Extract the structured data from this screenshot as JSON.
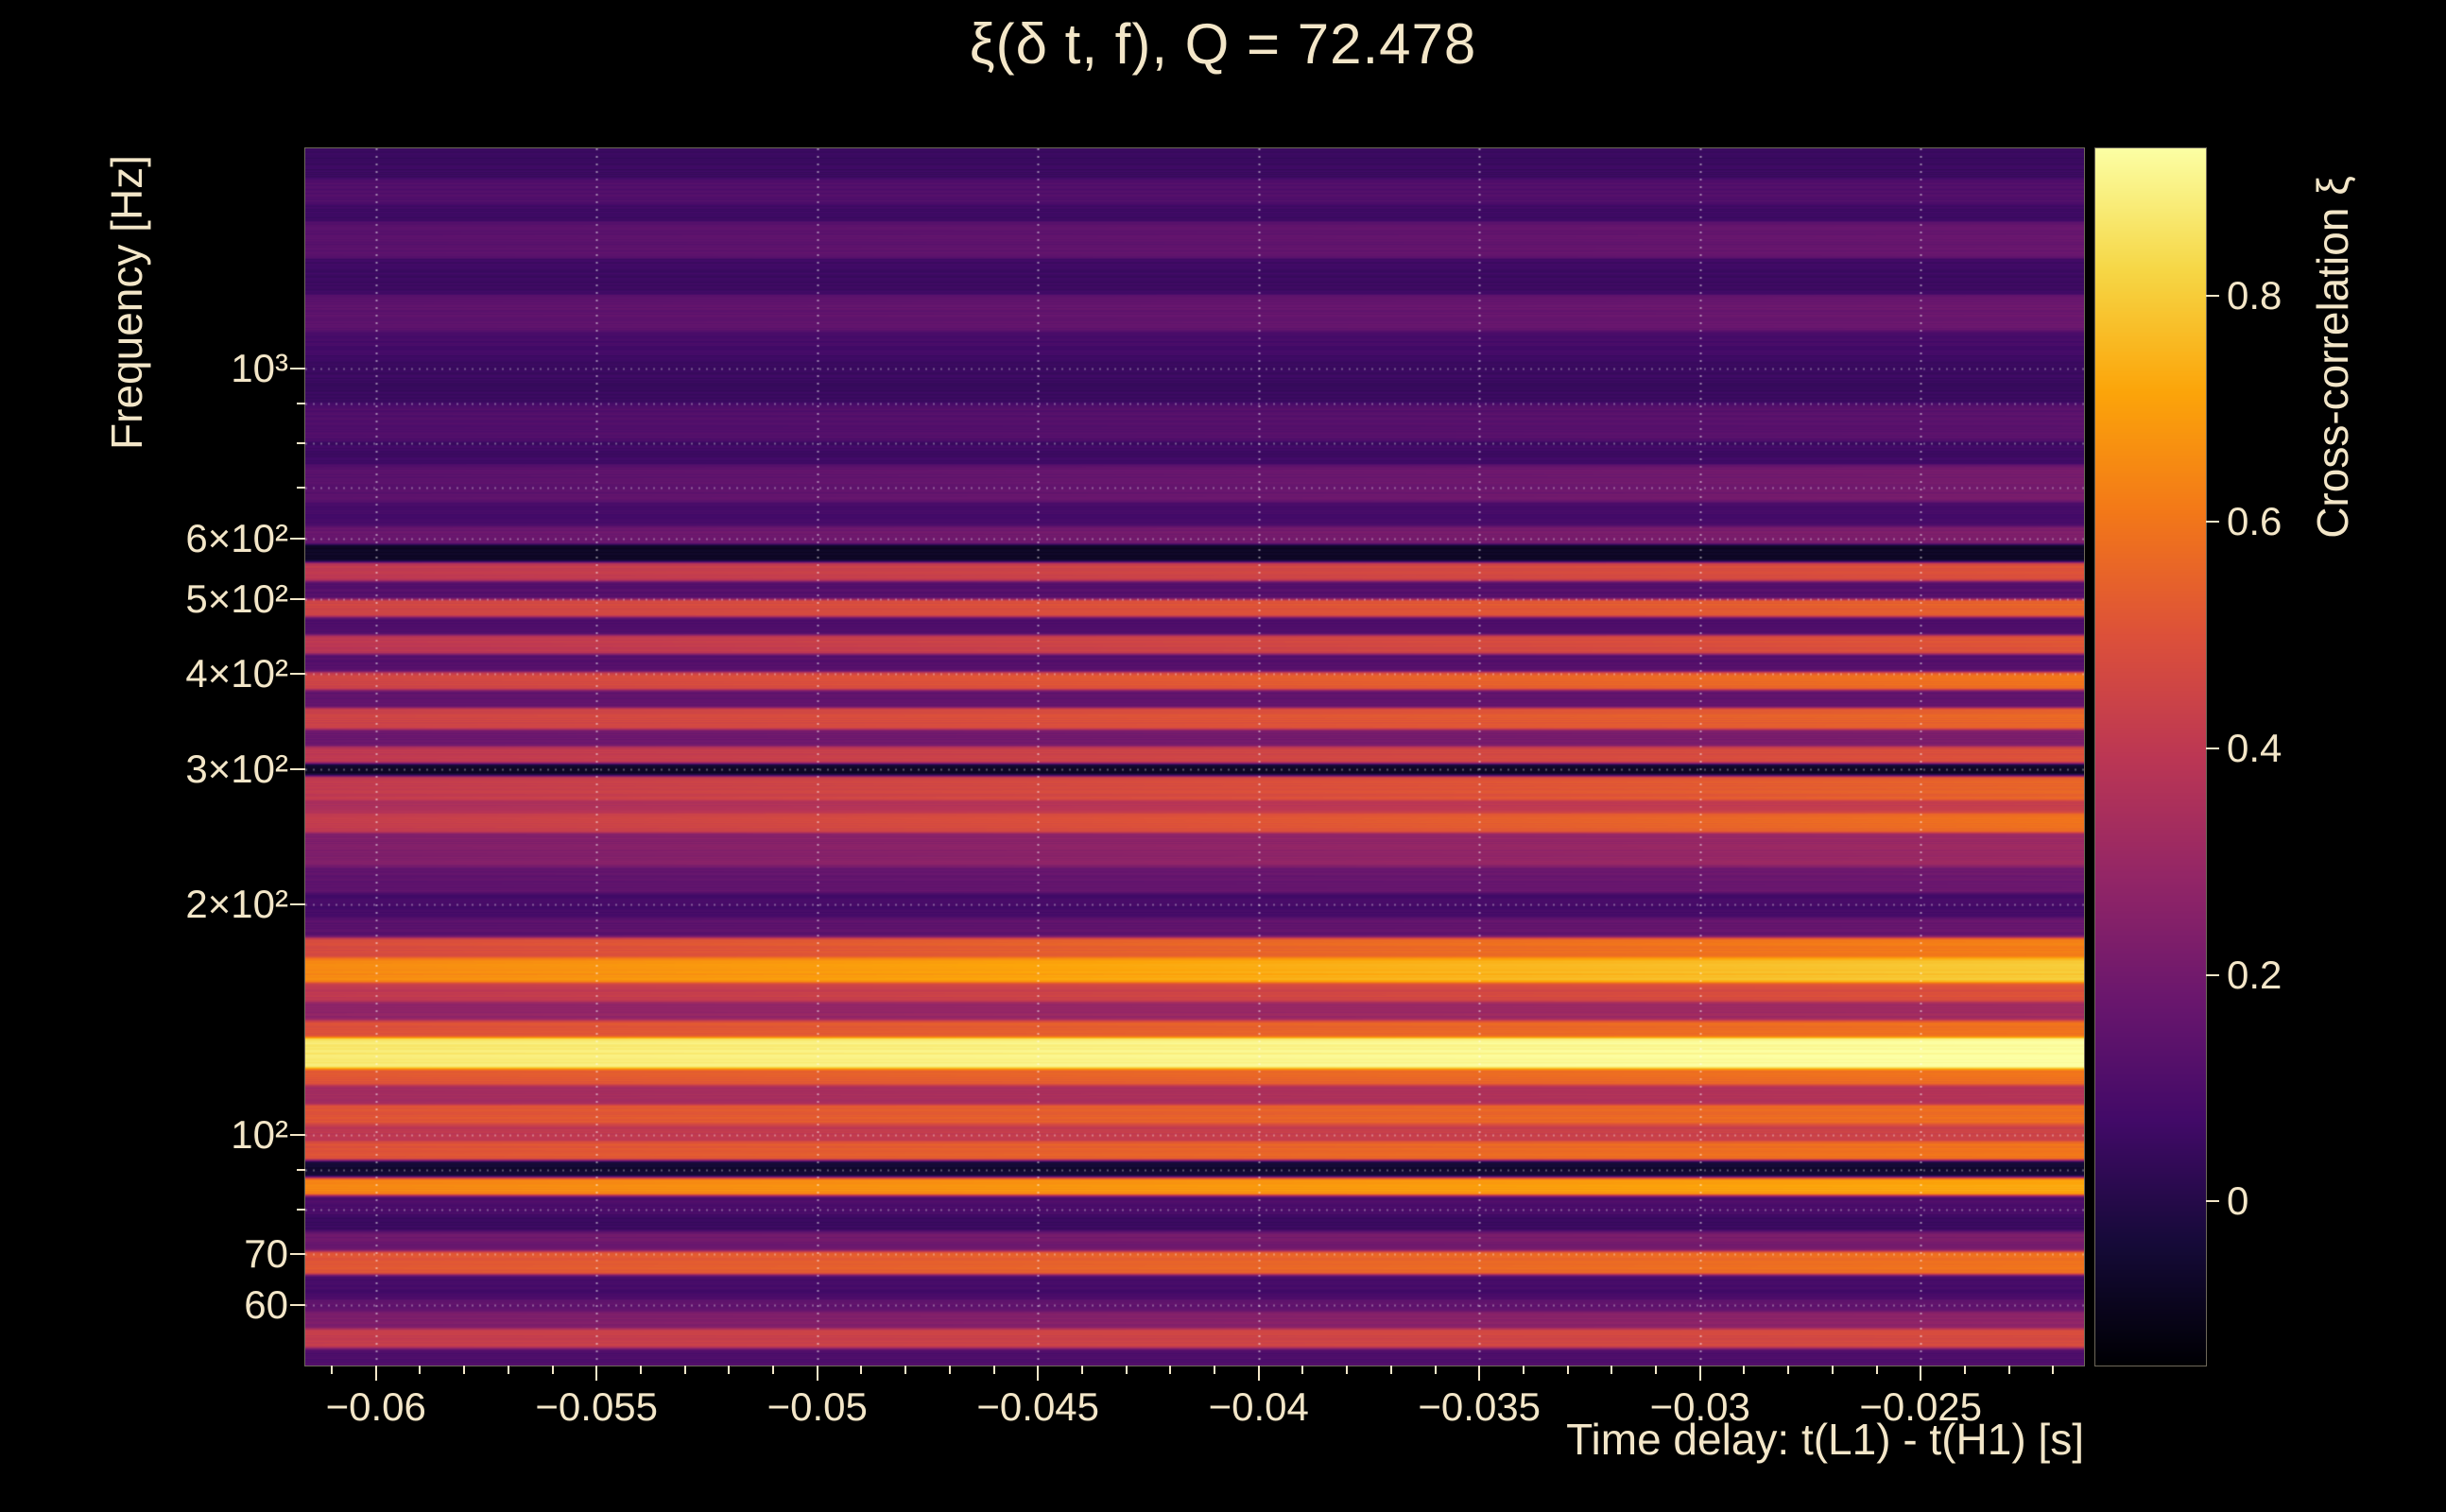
{
  "chart_data": {
    "type": "heatmap",
    "title": "ξ(δ t, f), Q = 72.478",
    "q": 72.478,
    "xlabel": "Time delay: t(L1) - t(H1) [s]",
    "ylabel": "Frequency [Hz]",
    "colorbar_label": "Cross-correlation ξ",
    "x_range": [
      -0.0616,
      -0.0213
    ],
    "y_range_hz": [
      50,
      1940
    ],
    "y_scale": "log",
    "grid": "dotted-white",
    "colormap": "inferno",
    "color_range": [
      -0.145,
      0.93
    ],
    "colormap_stops": [
      [
        0,
        "#000004"
      ],
      [
        0.1,
        "#160b39"
      ],
      [
        0.2,
        "#420a68"
      ],
      [
        0.3,
        "#6a176e"
      ],
      [
        0.4,
        "#932667"
      ],
      [
        0.5,
        "#bc3754"
      ],
      [
        0.6,
        "#dd513a"
      ],
      [
        0.7,
        "#f37819"
      ],
      [
        0.8,
        "#fca50a"
      ],
      [
        0.9,
        "#f6d746"
      ],
      [
        1,
        "#fcffa4"
      ]
    ],
    "x_ticks": [
      {
        "v": -0.06,
        "label": "−0.06"
      },
      {
        "v": -0.055,
        "label": "−0.055"
      },
      {
        "v": -0.05,
        "label": "−0.05"
      },
      {
        "v": -0.045,
        "label": "−0.045"
      },
      {
        "v": -0.04,
        "label": "−0.04"
      },
      {
        "v": -0.035,
        "label": "−0.035"
      },
      {
        "v": -0.03,
        "label": "−0.03"
      },
      {
        "v": -0.025,
        "label": "−0.025"
      }
    ],
    "x_minor_step": 0.001,
    "y_ticks": [
      {
        "hz": 1000,
        "label": "10³"
      },
      {
        "hz": 900,
        "label": ""
      },
      {
        "hz": 800,
        "label": ""
      },
      {
        "hz": 700,
        "label": ""
      },
      {
        "hz": 600,
        "label": "6×10²"
      },
      {
        "hz": 500,
        "label": "5×10²"
      },
      {
        "hz": 400,
        "label": "4×10²"
      },
      {
        "hz": 300,
        "label": "3×10²"
      },
      {
        "hz": 200,
        "label": "2×10²"
      },
      {
        "hz": 100,
        "label": "10²"
      },
      {
        "hz": 90,
        "label": ""
      },
      {
        "hz": 80,
        "label": ""
      },
      {
        "hz": 70,
        "label": "70"
      },
      {
        "hz": 60,
        "label": "60"
      }
    ],
    "colorbar_ticks": [
      {
        "v": 0.8,
        "label": "0.8"
      },
      {
        "v": 0.6,
        "label": "0.6"
      },
      {
        "v": 0.4,
        "label": "0.4"
      },
      {
        "v": 0.2,
        "label": "0.2"
      },
      {
        "v": 0,
        "label": "0"
      }
    ],
    "bands_format": [
      "f_hi_hz",
      "f_lo_hz",
      "xi",
      "xi_slope_left_to_right"
    ],
    "bands": [
      [
        1940,
        1772,
        0.05,
        0
      ],
      [
        1772,
        1645,
        0.11,
        0
      ],
      [
        1645,
        1558,
        0.06,
        0
      ],
      [
        1558,
        1396,
        0.15,
        0.04
      ],
      [
        1396,
        1252,
        0.06,
        0
      ],
      [
        1252,
        1122,
        0.16,
        0.04
      ],
      [
        1122,
        1043,
        0.08,
        0
      ],
      [
        1043,
        901,
        0.05,
        0
      ],
      [
        901,
        806,
        0.12,
        0.03
      ],
      [
        806,
        750,
        0.06,
        0
      ],
      [
        750,
        671,
        0.17,
        0.08
      ],
      [
        671,
        624,
        0.08,
        0
      ],
      [
        624,
        591,
        0.2,
        0.06
      ],
      [
        591,
        559,
        -0.08,
        0
      ],
      [
        559,
        529,
        0.45,
        0.1
      ],
      [
        529,
        501,
        0.12,
        0
      ],
      [
        501,
        474,
        0.5,
        0.1
      ],
      [
        474,
        449,
        0.1,
        0
      ],
      [
        449,
        425,
        0.45,
        0.12
      ],
      [
        425,
        402,
        0.12,
        0
      ],
      [
        402,
        381,
        0.52,
        0.15
      ],
      [
        381,
        361,
        0.15,
        0
      ],
      [
        361,
        338,
        0.5,
        0.12
      ],
      [
        338,
        321,
        0.2,
        0.05
      ],
      [
        321,
        305,
        0.45,
        0.1
      ],
      [
        305,
        294,
        -0.08,
        0
      ],
      [
        294,
        273,
        0.48,
        0.15
      ],
      [
        273,
        263,
        0.38,
        0.08
      ],
      [
        263,
        248,
        0.5,
        0.18
      ],
      [
        248,
        224,
        0.27,
        0.08
      ],
      [
        224,
        207,
        0.17,
        0.04
      ],
      [
        207,
        192,
        0.08,
        0
      ],
      [
        192,
        181,
        0.15,
        0.04
      ],
      [
        181,
        170,
        0.55,
        0.15
      ],
      [
        170,
        158,
        0.72,
        0.15
      ],
      [
        158,
        149,
        0.45,
        0.1
      ],
      [
        149,
        141,
        0.3,
        0.05
      ],
      [
        141,
        134,
        0.55,
        0.1
      ],
      [
        134,
        122,
        0.9,
        0.06
      ],
      [
        122,
        116,
        0.55,
        0.08
      ],
      [
        116,
        109.4,
        0.35,
        0.05
      ],
      [
        109.4,
        103.2,
        0.55,
        0.08
      ],
      [
        103.2,
        98,
        0.42,
        0.05
      ],
      [
        98,
        92.5,
        0.55,
        0.1
      ],
      [
        92.5,
        87.8,
        -0.05,
        0
      ],
      [
        87.8,
        83.4,
        0.68,
        0.08
      ],
      [
        83.4,
        78.7,
        0.1,
        0
      ],
      [
        78.7,
        74.8,
        0.05,
        0
      ],
      [
        74.8,
        70.5,
        0.2,
        0.04
      ],
      [
        70.5,
        65.6,
        0.55,
        0.08
      ],
      [
        65.6,
        60.9,
        0.08,
        0
      ],
      [
        60.9,
        58.7,
        0.15,
        0
      ],
      [
        58.7,
        55.8,
        0.25,
        0.05
      ],
      [
        55.8,
        52.6,
        0.45,
        0.06
      ],
      [
        52.6,
        50,
        0.1,
        0
      ]
    ]
  },
  "style": {
    "background": "#000000",
    "text_color": "#f3e6c8",
    "tick_color": "#f3e6c8",
    "grid_color": "#ffffff"
  }
}
